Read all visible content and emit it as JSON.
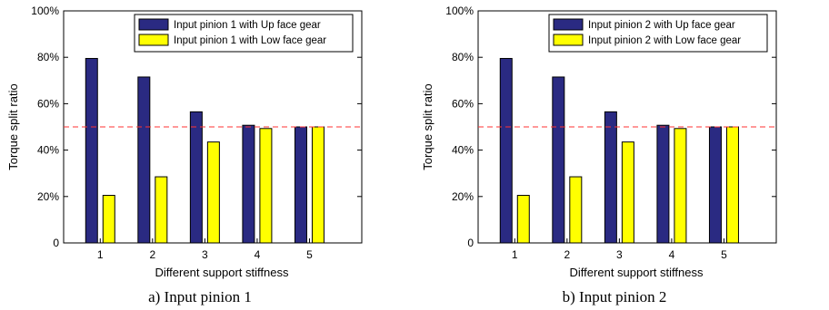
{
  "colors": {
    "up": "#2a2a82",
    "low": "#ffff00",
    "reference": "#ff3333",
    "frame": "#000000"
  },
  "chart_data": [
    {
      "type": "bar",
      "categories": [
        "1",
        "2",
        "3",
        "4",
        "5"
      ],
      "series": [
        {
          "name": "Input pinion 1 with Up face gear",
          "values": [
            0.795,
            0.715,
            0.565,
            0.507,
            0.5
          ]
        },
        {
          "name": "Input pinion 1 with Low face gear",
          "values": [
            0.205,
            0.285,
            0.435,
            0.493,
            0.5
          ]
        }
      ],
      "ylim": [
        0,
        1
      ],
      "yticks": [
        "0",
        "20%",
        "40%",
        "60%",
        "80%",
        "100%"
      ],
      "xlabel": "Different support stiffness",
      "ylabel": "Torque split ratio",
      "reference_line": 0.5,
      "legend_position": "top-right",
      "caption": "a) Input pinion 1"
    },
    {
      "type": "bar",
      "categories": [
        "1",
        "2",
        "3",
        "4",
        "5"
      ],
      "series": [
        {
          "name": "Input pinion 2 with Up face gear",
          "values": [
            0.795,
            0.715,
            0.565,
            0.507,
            0.5
          ]
        },
        {
          "name": "Input pinion 2 with Low face gear",
          "values": [
            0.205,
            0.285,
            0.435,
            0.493,
            0.5
          ]
        }
      ],
      "ylim": [
        0,
        1
      ],
      "yticks": [
        "0",
        "20%",
        "40%",
        "60%",
        "80%",
        "100%"
      ],
      "xlabel": "Different support stiffness",
      "ylabel": "Torque split ratio",
      "reference_line": 0.5,
      "legend_position": "top-right",
      "caption": "b) Input pinion 2"
    }
  ]
}
